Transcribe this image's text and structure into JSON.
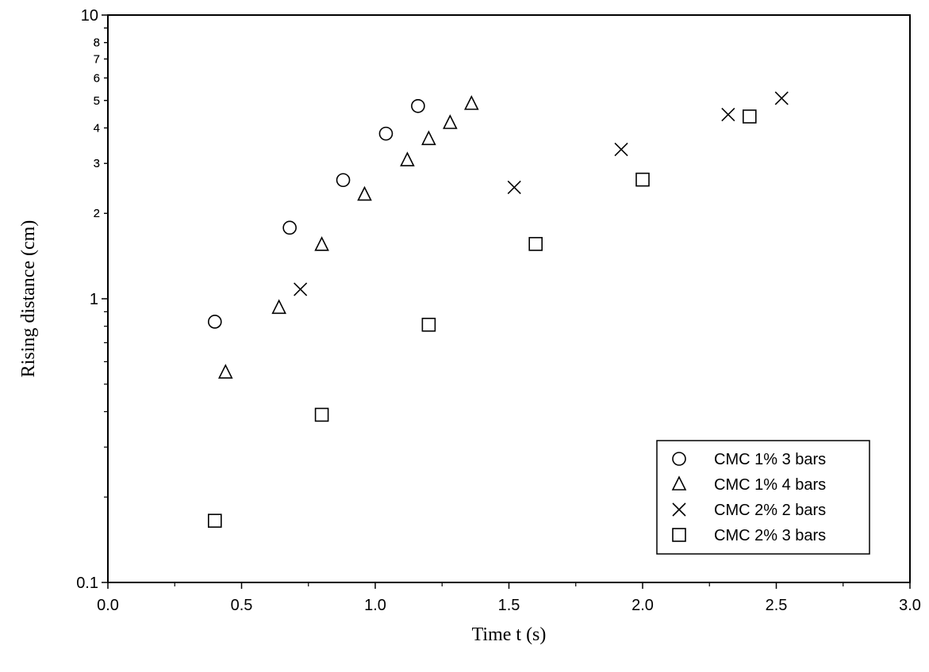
{
  "chart_data": {
    "type": "scatter",
    "xlabel": "Time t (s)",
    "ylabel": "Rising distance (cm)",
    "xlim": [
      0.0,
      3.0
    ],
    "ylim": [
      0.1,
      10
    ],
    "yscale": "log",
    "grid": false,
    "legend_position": "bottom-right",
    "x_ticks": [
      "0.0",
      "0.5",
      "1.0",
      "1.5",
      "2.0",
      "2.5",
      "3.0"
    ],
    "y_major_ticks": [
      {
        "value": 0.1,
        "label": "0.1"
      },
      {
        "value": 1,
        "label": "1"
      },
      {
        "value": 10,
        "label": "10"
      }
    ],
    "y_minor_ticks": [
      {
        "value": 0.2,
        "label": ""
      },
      {
        "value": 0.3,
        "label": ""
      },
      {
        "value": 0.4,
        "label": ""
      },
      {
        "value": 0.5,
        "label": ""
      },
      {
        "value": 0.6,
        "label": ""
      },
      {
        "value": 0.7,
        "label": ""
      },
      {
        "value": 0.8,
        "label": ""
      },
      {
        "value": 0.9,
        "label": ""
      },
      {
        "value": 2,
        "label": "2"
      },
      {
        "value": 3,
        "label": "3"
      },
      {
        "value": 4,
        "label": "4"
      },
      {
        "value": 5,
        "label": "5"
      },
      {
        "value": 6,
        "label": "6"
      },
      {
        "value": 7,
        "label": "7"
      },
      {
        "value": 8,
        "label": "8"
      },
      {
        "value": 9,
        "label": ""
      },
      {
        "value": 2,
        "label": "2",
        "decade": 0.1
      },
      {
        "value": 3,
        "label": "3",
        "decade": 0.1
      },
      {
        "value": 4,
        "label": "4",
        "decade": 0.1
      },
      {
        "value": 5,
        "label": "5",
        "decade": 0.1
      },
      {
        "value": 6,
        "label": "6",
        "decade": 0.1
      },
      {
        "value": 7,
        "label": "7",
        "decade": 0.1
      },
      {
        "value": 8,
        "label": "8",
        "decade": 0.1
      },
      {
        "value": 9,
        "label": "",
        "decade": 0.1
      }
    ],
    "series": [
      {
        "name": "CMC 1% 3 bars",
        "marker": "circle",
        "x": [
          0.4,
          0.68,
          0.88,
          1.04,
          1.16
        ],
        "y": [
          0.83,
          1.78,
          2.62,
          3.82,
          4.78
        ]
      },
      {
        "name": "CMC 1% 4 bars",
        "marker": "triangle",
        "x": [
          0.44,
          0.64,
          0.8,
          0.96,
          1.12,
          1.2,
          1.28,
          1.36
        ],
        "y": [
          0.55,
          0.93,
          1.55,
          2.33,
          3.08,
          3.66,
          4.17,
          4.87
        ]
      },
      {
        "name": "CMC 2% 2 bars",
        "marker": "cross",
        "x": [
          0.72,
          1.52,
          1.92,
          2.32,
          2.52
        ],
        "y": [
          1.08,
          2.47,
          3.36,
          4.46,
          5.09
        ]
      },
      {
        "name": "CMC 2% 3 bars",
        "marker": "square",
        "x": [
          0.4,
          0.8,
          1.2,
          1.6,
          2.0,
          2.4
        ],
        "y": [
          0.165,
          0.39,
          0.81,
          1.56,
          2.63,
          4.39
        ]
      }
    ]
  }
}
